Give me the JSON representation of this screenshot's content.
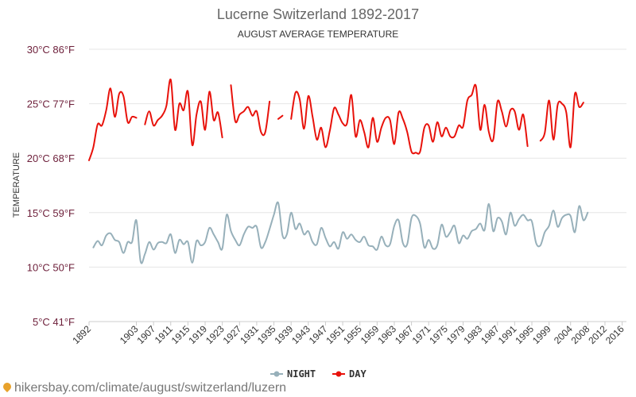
{
  "chart_data": {
    "type": "line",
    "title": "Lucerne Switzerland 1892-2017",
    "subtitle": "AUGUST AVERAGE TEMPERATURE",
    "ylabel": "TEMPERATURE",
    "ylim": [
      5,
      30
    ],
    "yticks": [
      "5°C 41°F",
      "10°C 50°F",
      "15°C 59°F",
      "20°C 68°F",
      "25°C 77°F",
      "30°C 86°F"
    ],
    "xlim": [
      1892,
      2017
    ],
    "xticks": [
      "1892",
      "1903",
      "1907",
      "1911",
      "1915",
      "1919",
      "1923",
      "1927",
      "1931",
      "1935",
      "1939",
      "1943",
      "1947",
      "1951",
      "1955",
      "1959",
      "1963",
      "1967",
      "1971",
      "1975",
      "1979",
      "1983",
      "1987",
      "1991",
      "1995",
      "1999",
      "2004",
      "2008",
      "2012",
      "2016"
    ],
    "legend_position": "bottom-center",
    "grid": true,
    "series": [
      {
        "name": "NIGHT",
        "color": "#97b0ba",
        "points": [
          [
            1893,
            11.8
          ],
          [
            1894,
            12.4
          ],
          [
            1895,
            12.0
          ],
          [
            1896,
            12.9
          ],
          [
            1897,
            13.1
          ],
          [
            1898,
            12.5
          ],
          [
            1899,
            12.3
          ],
          [
            1900,
            11.3
          ],
          [
            1901,
            12.3
          ],
          [
            1902,
            12.3
          ],
          [
            1903,
            14.3
          ],
          [
            1904,
            10.5
          ],
          [
            1905,
            11.2
          ],
          [
            1906,
            12.3
          ],
          [
            1907,
            11.6
          ],
          [
            1908,
            12.2
          ],
          [
            1909,
            12.3
          ],
          [
            1910,
            12.2
          ],
          [
            1911,
            13.0
          ],
          [
            1912,
            11.3
          ],
          [
            1913,
            12.5
          ],
          [
            1914,
            12.1
          ],
          [
            1915,
            12.3
          ],
          [
            1916,
            10.4
          ],
          [
            1917,
            12.4
          ],
          [
            1918,
            12.0
          ],
          [
            1919,
            12.3
          ],
          [
            1920,
            13.6
          ],
          [
            1921,
            13.0
          ],
          [
            1922,
            12.3
          ],
          [
            1923,
            11.7
          ],
          [
            1924,
            14.8
          ],
          [
            1925,
            13.3
          ],
          [
            1926,
            12.5
          ],
          [
            1927,
            12.0
          ],
          [
            1928,
            13.0
          ],
          [
            1929,
            13.7
          ],
          [
            1930,
            13.6
          ],
          [
            1931,
            13.7
          ],
          [
            1932,
            11.8
          ],
          [
            1933,
            12.3
          ],
          [
            1934,
            13.5
          ],
          [
            1935,
            14.8
          ],
          [
            1936,
            15.9
          ],
          [
            1937,
            12.9
          ],
          [
            1938,
            13.0
          ],
          [
            1939,
            15.0
          ],
          [
            1940,
            13.5
          ],
          [
            1941,
            14.0
          ],
          [
            1942,
            13.0
          ],
          [
            1943,
            13.3
          ],
          [
            1944,
            12.3
          ],
          [
            1945,
            12.1
          ],
          [
            1946,
            13.6
          ],
          [
            1947,
            12.7
          ],
          [
            1948,
            11.9
          ],
          [
            1949,
            12.3
          ],
          [
            1950,
            11.7
          ],
          [
            1951,
            13.2
          ],
          [
            1952,
            12.6
          ],
          [
            1953,
            13.0
          ],
          [
            1954,
            12.5
          ],
          [
            1955,
            12.3
          ],
          [
            1956,
            12.8
          ],
          [
            1957,
            12.0
          ],
          [
            1958,
            11.9
          ],
          [
            1959,
            11.6
          ],
          [
            1960,
            12.8
          ],
          [
            1961,
            12.0
          ],
          [
            1962,
            12.1
          ],
          [
            1963,
            13.8
          ],
          [
            1964,
            14.3
          ],
          [
            1965,
            12.2
          ],
          [
            1966,
            12.1
          ],
          [
            1967,
            14.5
          ],
          [
            1968,
            14.7
          ],
          [
            1969,
            14.0
          ],
          [
            1970,
            11.8
          ],
          [
            1971,
            12.5
          ],
          [
            1972,
            11.7
          ],
          [
            1973,
            12.0
          ],
          [
            1974,
            13.9
          ],
          [
            1975,
            12.8
          ],
          [
            1976,
            13.2
          ],
          [
            1977,
            13.8
          ],
          [
            1978,
            12.2
          ],
          [
            1979,
            12.9
          ],
          [
            1980,
            12.6
          ],
          [
            1981,
            13.3
          ],
          [
            1982,
            13.5
          ],
          [
            1983,
            14.0
          ],
          [
            1984,
            13.4
          ],
          [
            1985,
            15.8
          ],
          [
            1986,
            13.3
          ],
          [
            1987,
            14.5
          ],
          [
            1988,
            14.2
          ],
          [
            1989,
            13.0
          ],
          [
            1990,
            15.0
          ],
          [
            1991,
            13.8
          ],
          [
            1992,
            14.4
          ],
          [
            1993,
            14.8
          ],
          [
            1994,
            14.3
          ],
          [
            1995,
            14.2
          ],
          [
            1996,
            12.2
          ],
          [
            1997,
            12.0
          ],
          [
            1998,
            13.2
          ],
          [
            1999,
            13.8
          ],
          [
            2000,
            15.2
          ],
          [
            2001,
            13.7
          ],
          [
            2002,
            14.5
          ],
          [
            2003,
            14.8
          ],
          [
            2004,
            14.7
          ],
          [
            2005,
            13.2
          ],
          [
            2006,
            15.6
          ],
          [
            2007,
            14.3
          ],
          [
            2008,
            15.0
          ]
        ]
      },
      {
        "name": "DAY",
        "color": "#e8120b",
        "points": [
          [
            1892,
            19.8
          ],
          [
            1893,
            21.0
          ],
          [
            1894,
            23.1
          ],
          [
            1895,
            23.0
          ],
          [
            1896,
            24.4
          ],
          [
            1897,
            26.4
          ],
          [
            1898,
            23.8
          ],
          [
            1899,
            25.9
          ],
          [
            1900,
            25.7
          ],
          [
            1901,
            23.3
          ],
          [
            1902,
            23.8
          ],
          [
            1903,
            23.7
          ],
          null,
          [
            1905,
            23.1
          ],
          [
            1906,
            24.3
          ],
          [
            1907,
            23.0
          ],
          [
            1908,
            23.5
          ],
          [
            1909,
            23.9
          ],
          [
            1910,
            24.8
          ],
          [
            1911,
            27.2
          ],
          [
            1912,
            22.6
          ],
          [
            1913,
            25.0
          ],
          [
            1914,
            24.4
          ],
          [
            1915,
            26.1
          ],
          [
            1916,
            21.2
          ],
          [
            1917,
            24.0
          ],
          [
            1918,
            25.2
          ],
          [
            1919,
            22.6
          ],
          [
            1920,
            26.1
          ],
          [
            1921,
            23.5
          ],
          [
            1922,
            24.2
          ],
          [
            1923,
            21.9
          ],
          null,
          [
            1925,
            26.7
          ],
          [
            1926,
            23.4
          ],
          [
            1927,
            24.0
          ],
          [
            1928,
            24.3
          ],
          [
            1929,
            24.7
          ],
          [
            1930,
            23.9
          ],
          [
            1931,
            24.3
          ],
          [
            1932,
            22.4
          ],
          [
            1933,
            22.4
          ],
          [
            1934,
            25.2
          ],
          null,
          [
            1936,
            23.6
          ],
          [
            1937,
            23.9
          ],
          null,
          [
            1939,
            23.6
          ],
          [
            1940,
            26.0
          ],
          [
            1941,
            25.4
          ],
          [
            1942,
            22.7
          ],
          [
            1943,
            25.7
          ],
          [
            1944,
            23.8
          ],
          [
            1945,
            21.7
          ],
          [
            1946,
            22.8
          ],
          [
            1947,
            21.0
          ],
          [
            1948,
            22.5
          ],
          [
            1949,
            24.6
          ],
          [
            1950,
            24.0
          ],
          [
            1951,
            23.2
          ],
          [
            1952,
            23.2
          ],
          [
            1953,
            25.8
          ],
          [
            1954,
            22.0
          ],
          [
            1955,
            23.5
          ],
          [
            1956,
            22.4
          ],
          [
            1957,
            21.0
          ],
          [
            1958,
            23.7
          ],
          [
            1959,
            21.5
          ],
          [
            1960,
            22.8
          ],
          [
            1961,
            23.7
          ],
          [
            1962,
            23.5
          ],
          [
            1963,
            21.3
          ],
          [
            1964,
            24.2
          ],
          [
            1965,
            23.6
          ],
          [
            1966,
            22.4
          ],
          [
            1967,
            20.6
          ],
          [
            1968,
            20.5
          ],
          [
            1969,
            20.6
          ],
          [
            1970,
            22.8
          ],
          [
            1971,
            23.0
          ],
          [
            1972,
            21.5
          ],
          [
            1973,
            23.3
          ],
          [
            1974,
            22.0
          ],
          [
            1975,
            22.8
          ],
          [
            1976,
            22.0
          ],
          [
            1977,
            22.0
          ],
          [
            1978,
            23.0
          ],
          [
            1979,
            22.9
          ],
          [
            1980,
            25.3
          ],
          [
            1981,
            25.8
          ],
          [
            1982,
            26.6
          ],
          [
            1983,
            22.6
          ],
          [
            1984,
            24.9
          ],
          [
            1985,
            22.4
          ],
          [
            1986,
            21.7
          ],
          [
            1987,
            25.2
          ],
          [
            1988,
            24.3
          ],
          [
            1989,
            22.9
          ],
          [
            1990,
            24.4
          ],
          [
            1991,
            24.3
          ],
          [
            1992,
            22.6
          ],
          [
            1993,
            24.0
          ],
          [
            1994,
            21.1
          ],
          null,
          [
            1997,
            21.6
          ],
          [
            1998,
            22.3
          ],
          [
            1999,
            25.3
          ],
          [
            2000,
            21.7
          ],
          [
            2001,
            24.9
          ],
          [
            2002,
            25.0
          ],
          [
            2003,
            24.2
          ],
          [
            2004,
            21.0
          ],
          [
            2005,
            25.9
          ],
          [
            2006,
            24.7
          ],
          [
            2007,
            25.1
          ]
        ]
      }
    ]
  },
  "footer": {
    "url": "hikersbay.com/climate/august/switzerland/luzern"
  }
}
